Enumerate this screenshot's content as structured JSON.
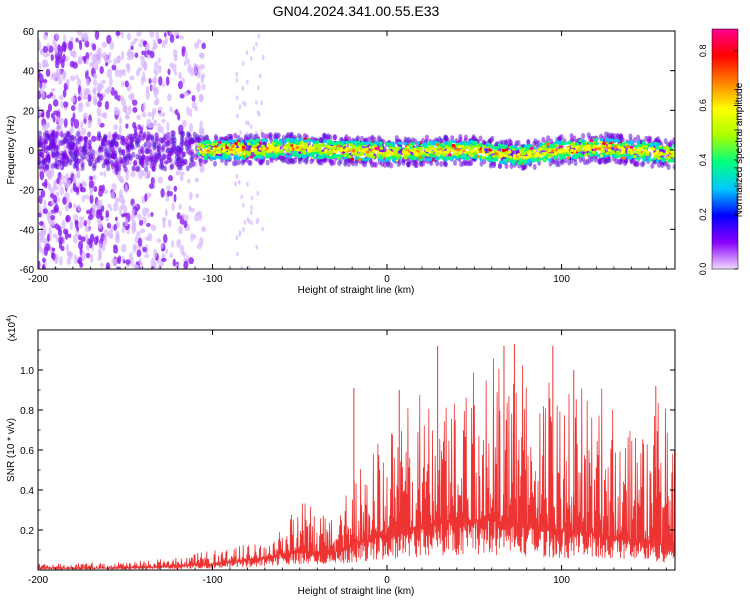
{
  "chart_data": [
    {
      "type": "heatmap",
      "title": "GN04.2024.341.00.55.E33",
      "xlabel": "Height of straight line (km)",
      "ylabel": "Frequency (Hz)",
      "xlim": [
        -200,
        165
      ],
      "ylim": [
        -60,
        60
      ],
      "xticks": [
        -200,
        -100,
        0,
        100
      ],
      "xtick_labels": [
        "-200",
        "-100",
        "0",
        "100"
      ],
      "yticks": [
        -60,
        -40,
        -20,
        0,
        20,
        40,
        60
      ],
      "ytick_labels": [
        "-60",
        "-40",
        "-20",
        "0",
        "20",
        "40",
        "60"
      ],
      "band_center_hz": [
        {
          "x": -200,
          "y": 0
        },
        {
          "x": -150,
          "y": -1
        },
        {
          "x": -100,
          "y": 0
        },
        {
          "x": -50,
          "y": 1
        },
        {
          "x": -30,
          "y": 0
        },
        {
          "x": 0,
          "y": -1
        },
        {
          "x": 50,
          "y": 0
        },
        {
          "x": 75,
          "y": -3
        },
        {
          "x": 100,
          "y": 0
        },
        {
          "x": 125,
          "y": 1
        },
        {
          "x": 165,
          "y": -2
        }
      ],
      "noise_region_x": [
        -200,
        -105
      ],
      "colorbar": {
        "label": "Normalized spectral amplitude",
        "range": [
          0,
          0.88
        ],
        "ticks": [
          0.0,
          0.2,
          0.4,
          0.6,
          0.8
        ],
        "tick_labels": [
          "0.0",
          "0.2",
          "0.4",
          "0.6",
          "0.8"
        ],
        "colors": [
          "#f2d9ff",
          "#8b00ff",
          "#0000ff",
          "#00c8ff",
          "#00ff80",
          "#aaff00",
          "#ffff00",
          "#ff8000",
          "#ff0000",
          "#ff0090"
        ]
      },
      "grid": false
    },
    {
      "type": "line",
      "xlabel": "Height of straight line (km)",
      "ylabel": "SNR (10 * v/v)",
      "scale_label": "(x10",
      "scale_exponent": "4",
      "scale_close": ")",
      "xlim": [
        -200,
        165
      ],
      "ylim": [
        0,
        1.2
      ],
      "xticks": [
        -200,
        -100,
        0,
        100
      ],
      "xtick_labels": [
        "-200",
        "-100",
        "0",
        "100"
      ],
      "yticks": [
        0.2,
        0.4,
        0.6,
        0.8,
        1.0
      ],
      "ytick_labels": [
        "0.2",
        "0.4",
        "0.6",
        "0.8",
        "1.0"
      ],
      "color": "#ee3333",
      "envelope": {
        "x": [
          -200,
          -150,
          -120,
          -100,
          -80,
          -70,
          -60,
          -50,
          -40,
          -30,
          -20,
          -10,
          0,
          20,
          40,
          60,
          80,
          100,
          120,
          140,
          165
        ],
        "base": [
          0.01,
          0.01,
          0.02,
          0.03,
          0.05,
          0.06,
          0.08,
          0.09,
          0.08,
          0.09,
          0.13,
          0.15,
          0.18,
          0.22,
          0.25,
          0.25,
          0.22,
          0.2,
          0.18,
          0.15,
          0.12
        ],
        "peak": [
          0.03,
          0.04,
          0.06,
          0.1,
          0.13,
          0.14,
          0.2,
          0.35,
          0.3,
          0.3,
          0.5,
          0.62,
          0.7,
          0.9,
          1.02,
          1.08,
          1.05,
          0.92,
          0.95,
          0.85,
          0.85
        ]
      },
      "spikes": [
        {
          "x": -19,
          "y": 0.91
        },
        {
          "x": 7,
          "y": 0.9
        },
        {
          "x": 29,
          "y": 1.12
        },
        {
          "x": 67,
          "y": 1.12
        },
        {
          "x": 73,
          "y": 1.13
        },
        {
          "x": 95,
          "y": 1.12
        },
        {
          "x": 107,
          "y": 1.0
        },
        {
          "x": 154,
          "y": 0.92
        }
      ],
      "grid": false
    }
  ]
}
